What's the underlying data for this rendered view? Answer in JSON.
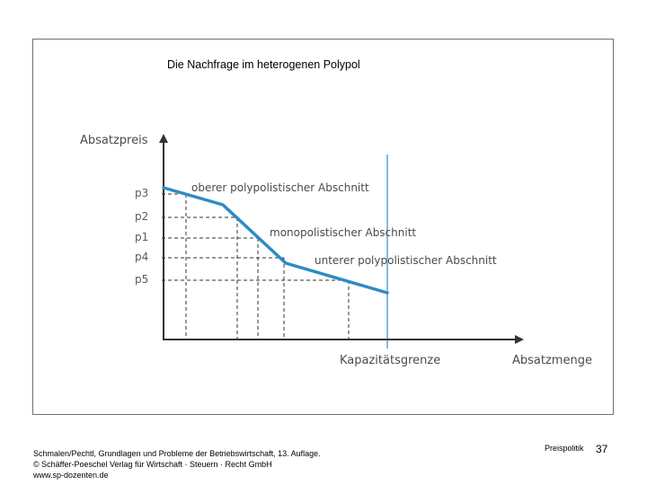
{
  "title": "Die Nachfrage im heterogenen Polypol",
  "diagram": {
    "y_axis_label": "Absatzpreis",
    "x_axis_label": "Absatzmenge",
    "capacity_label": "Kapazitätsgrenze",
    "price_labels": [
      "p3",
      "p2",
      "p1",
      "p4",
      "p5"
    ],
    "sections": {
      "upper": "oberer polypolistischer Abschnitt",
      "monopolistic": "monopolistischer Abschnitt",
      "lower": "unterer polypolistischer Abschnitt"
    },
    "colors": {
      "curve": "#2b8cc4",
      "capacity_line": "#8ab8de",
      "axes": "#333333",
      "guides": "#333333"
    }
  },
  "footer": {
    "source_line1": "Schmalen/Pechtl, Grundlagen und Probleme der Betriebswirtschaft, 13. Auflage.",
    "source_line2": "© Schäffer-Poeschel Verlag für Wirtschaft · Steuern · Recht GmbH",
    "source_line3": "www.sp-dozenten.de",
    "topic": "Preispolitik",
    "page_number": "37"
  }
}
